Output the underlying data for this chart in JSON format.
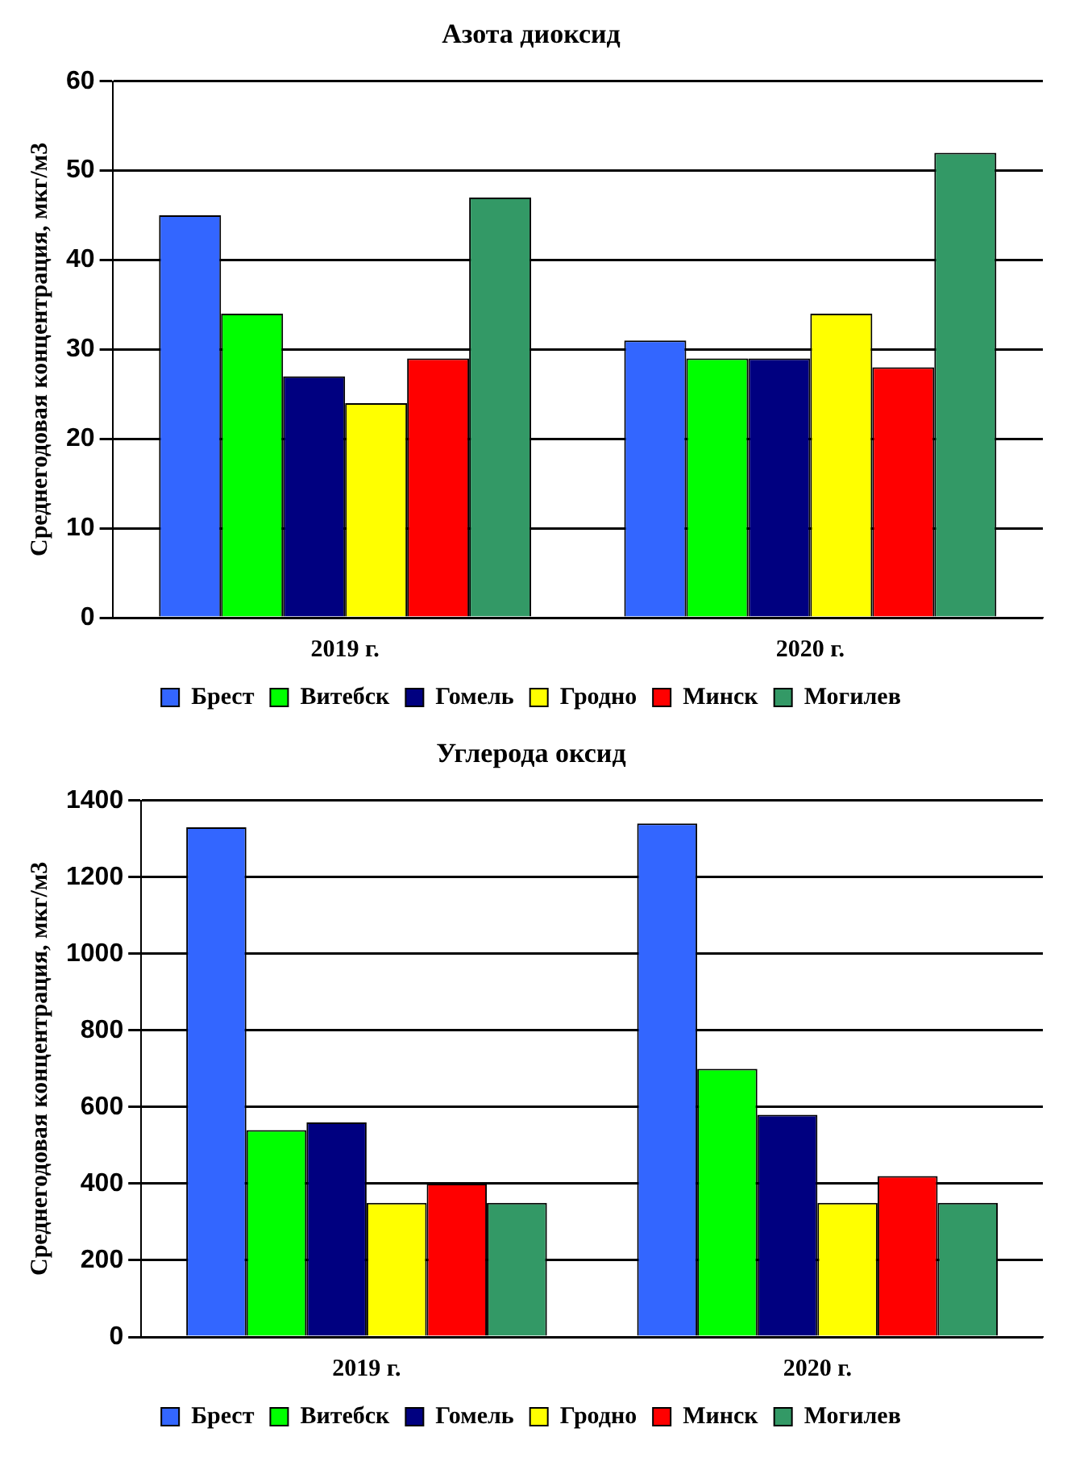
{
  "chart_data": [
    {
      "type": "bar",
      "title": "Азота диоксид",
      "ylabel": "Среднегодовая концентрация, мкг/м3",
      "categories": [
        "2019 г.",
        "2020 г."
      ],
      "series": [
        {
          "name": "Брест",
          "color": "#3366ff",
          "values": [
            45,
            31
          ]
        },
        {
          "name": "Витебск",
          "color": "#00ff00",
          "values": [
            34,
            29
          ]
        },
        {
          "name": "Гомель",
          "color": "#000080",
          "values": [
            27,
            29
          ]
        },
        {
          "name": "Гродно",
          "color": "#ffff00",
          "values": [
            24,
            34
          ]
        },
        {
          "name": "Минск",
          "color": "#ff0000",
          "values": [
            29,
            28
          ]
        },
        {
          "name": "Могилев",
          "color": "#339966",
          "values": [
            47,
            52
          ]
        }
      ],
      "ylim": [
        0,
        60
      ],
      "yticks": [
        0,
        10,
        20,
        30,
        40,
        50,
        60
      ],
      "grid": "y",
      "legend": "bottom"
    },
    {
      "type": "bar",
      "title": "Углерода оксид",
      "ylabel": "Среднегодовая концентрация, мкг/м3",
      "categories": [
        "2019 г.",
        "2020 г."
      ],
      "series": [
        {
          "name": "Брест",
          "color": "#3366ff",
          "values": [
            1330,
            1340
          ]
        },
        {
          "name": "Витебск",
          "color": "#00ff00",
          "values": [
            540,
            700
          ]
        },
        {
          "name": "Гомель",
          "color": "#000080",
          "values": [
            560,
            580
          ]
        },
        {
          "name": "Гродно",
          "color": "#ffff00",
          "values": [
            350,
            350
          ]
        },
        {
          "name": "Минск",
          "color": "#ff0000",
          "values": [
            400,
            420
          ]
        },
        {
          "name": "Могилев",
          "color": "#339966",
          "values": [
            350,
            350
          ]
        }
      ],
      "ylim": [
        0,
        1400
      ],
      "yticks": [
        0,
        200,
        400,
        600,
        800,
        1000,
        1200,
        1400
      ],
      "grid": "y",
      "legend": "bottom"
    }
  ]
}
